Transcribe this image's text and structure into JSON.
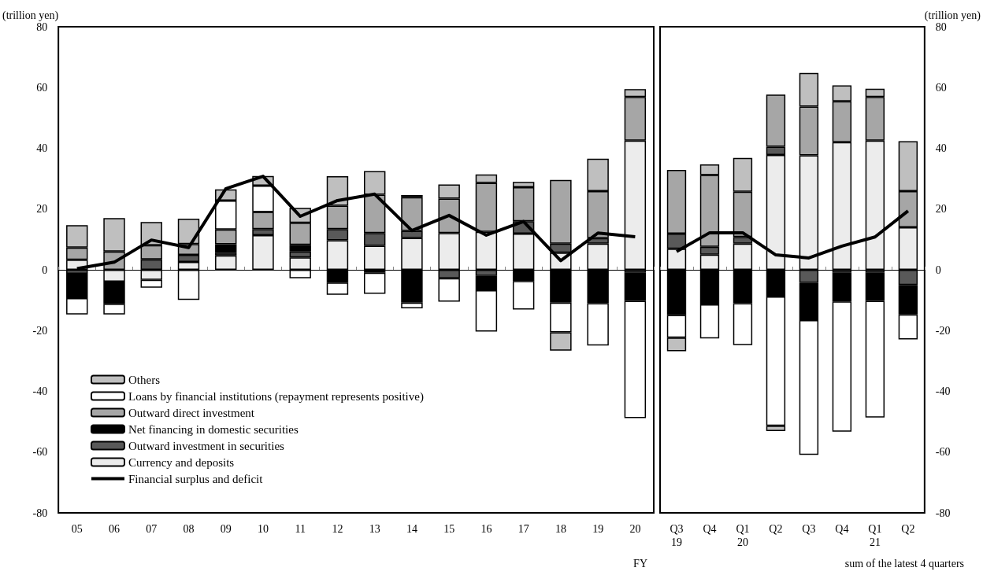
{
  "chart_data": [
    {
      "type": "bar",
      "stacked": true,
      "ylabel": "(trillion yen)",
      "categories": [
        "05",
        "06",
        "07",
        "08",
        "09",
        "10",
        "11",
        "12",
        "13",
        "14",
        "15",
        "16",
        "17",
        "18",
        "19",
        "20"
      ],
      "ylim": [
        -80,
        80
      ],
      "yticks": [
        -80,
        -60,
        -40,
        -20,
        0,
        20,
        40,
        60,
        80
      ],
      "legend": "bottom left",
      "marker": "none",
      "annotations": [
        "FY"
      ],
      "series": [
        {
          "name": "Currency and deposits",
          "color": "#ececec",
          "values": [
            3.3,
            -3.9,
            -3.3,
            2.6,
            4.7,
            11.4,
            4.1,
            9.7,
            7.9,
            10.5,
            12.1,
            12.5,
            11.9,
            5.6,
            8.6,
            42.5
          ]
        },
        {
          "name": "Outward investment in securities",
          "color": "#595959",
          "values": [
            -1.3,
            null,
            3.4,
            2.3,
            0.9,
            2.0,
            1.9,
            3.7,
            4.2,
            2.3,
            -2.8,
            -2.0,
            4.1,
            3.0,
            1.8,
            -1.0
          ]
        },
        {
          "name": "Net financing in domestic securities",
          "color": "#000000",
          "values": [
            -8.0,
            -7.3,
            null,
            null,
            2.8,
            null,
            2.2,
            -4.2,
            -1.0,
            -10.8,
            null,
            -4.7,
            -3.7,
            -10.8,
            -11.0,
            -9.2
          ]
        },
        {
          "name": "Outward direct investment",
          "color": "#a6a6a6",
          "values": [
            4.0,
            6.0,
            4.7,
            3.6,
            4.9,
            5.6,
            7.3,
            7.7,
            12.6,
            11.1,
            11.3,
            16.1,
            11.2,
            21.0,
            15.5,
            14.4
          ]
        },
        {
          "name": "Loans by financial institutions (repayment represents positive)",
          "color": "#ffffff",
          "values": [
            -5.4,
            -3.5,
            -2.6,
            -9.9,
            9.5,
            8.7,
            -2.8,
            -4.0,
            -6.9,
            -1.9,
            -7.7,
            -13.6,
            -9.4,
            -9.8,
            -13.9,
            -38.6
          ]
        },
        {
          "name": "Others",
          "color": "#bfbfbf",
          "values": [
            7.4,
            11.0,
            7.6,
            8.3,
            3.7,
            3.2,
            4.9,
            9.7,
            7.8,
            0.7,
            4.7,
            2.8,
            1.7,
            -6.0,
            10.7,
            2.6
          ]
        },
        {
          "name": "Financial surplus and deficit",
          "type": "line",
          "color": "#000000",
          "values": [
            0.4,
            2.5,
            9.8,
            7.3,
            26.7,
            30.8,
            17.6,
            22.8,
            24.9,
            12.9,
            17.9,
            11.4,
            15.9,
            3.0,
            12.1,
            10.9
          ]
        }
      ]
    },
    {
      "type": "bar",
      "stacked": true,
      "ylabel": "(trillion yen)",
      "categories": [
        "Q3\n19",
        "Q4",
        "Q1\n20",
        "Q2",
        "Q3",
        "Q4",
        "Q1\n21",
        "Q2"
      ],
      "ylim": [
        -80,
        80
      ],
      "yticks": [
        -80,
        -60,
        -40,
        -20,
        0,
        20,
        40,
        60,
        80
      ],
      "legend": false,
      "marker": "none",
      "annotations": [
        "sum of the latest 4 quarters"
      ],
      "series": [
        {
          "color": "#ececec",
          "values": [
            6.9,
            5.0,
            8.6,
            37.8,
            37.7,
            42.0,
            42.5,
            14.0
          ]
        },
        {
          "color": "#595959",
          "values": [
            5.0,
            2.6,
            2.2,
            2.7,
            -4.3,
            -1.0,
            -1.0,
            -5.0
          ]
        },
        {
          "color": "#000000",
          "values": [
            -14.9,
            -11.4,
            -11.0,
            -8.8,
            -12.3,
            -9.4,
            -9.2,
            -9.7
          ]
        },
        {
          "color": "#a6a6a6",
          "values": [
            21.0,
            23.6,
            14.9,
            17.2,
            16.0,
            13.5,
            14.4,
            11.9
          ]
        },
        {
          "color": "#ffffff",
          "values": [
            -7.4,
            -11.2,
            -13.8,
            -42.5,
            -44.3,
            -42.9,
            -38.4,
            -8.2
          ]
        },
        {
          "color": "#bfbfbf",
          "values": [
            -4.5,
            3.5,
            11.1,
            -1.8,
            11.1,
            5.2,
            2.7,
            16.4
          ]
        },
        {
          "type": "line",
          "color": "#000000",
          "values": [
            6.0,
            12.2,
            12.2,
            4.9,
            3.9,
            7.8,
            10.8,
            19.4
          ]
        }
      ]
    }
  ]
}
